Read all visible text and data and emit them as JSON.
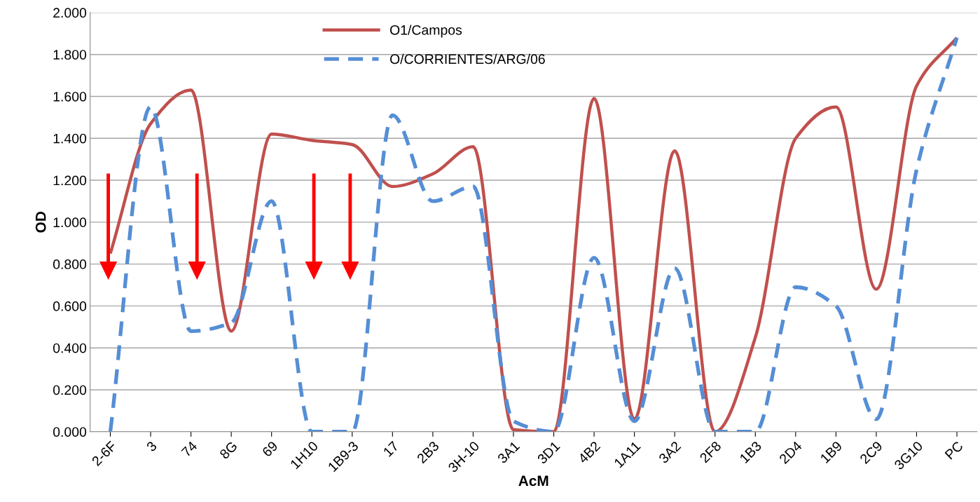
{
  "chart_data": {
    "type": "line",
    "xlabel": "AcM",
    "ylabel": "OD",
    "categories": [
      "2-6F",
      "3",
      "74",
      "8G",
      "69",
      "1H10",
      "1B9-3",
      "17",
      "2B3",
      "3H-10",
      "3A1",
      "3D1",
      "4B2",
      "1A11",
      "3A2",
      "2F8",
      "1B3",
      "2D4",
      "1B9",
      "2C9",
      "3G10",
      "PC"
    ],
    "series": [
      {
        "name": "O1/Campos",
        "color": "#c0504d",
        "line_style": "solid",
        "values": [
          0.85,
          1.47,
          1.63,
          0.48,
          1.42,
          1.39,
          1.37,
          1.17,
          1.23,
          1.36,
          0.01,
          0.0,
          1.59,
          0.06,
          1.34,
          0.0,
          0.45,
          1.4,
          1.55,
          0.68,
          1.65,
          1.88
        ]
      },
      {
        "name": "O/CORRIENTES/ARG/06",
        "color": "#558ed5",
        "line_style": "dashed",
        "values": [
          0.0,
          1.55,
          0.48,
          0.52,
          1.1,
          0.0,
          0.0,
          1.51,
          1.1,
          1.17,
          0.05,
          0.0,
          0.83,
          0.05,
          0.78,
          0.0,
          0.0,
          0.69,
          0.6,
          0.06,
          1.25,
          1.88
        ]
      }
    ],
    "ylim": [
      0,
      2
    ],
    "yticks": [
      {
        "value": 0,
        "label": "0.000"
      },
      {
        "value": 0.2,
        "label": "0.200"
      },
      {
        "value": 0.4,
        "label": "0.400"
      },
      {
        "value": 0.6,
        "label": "0.600"
      },
      {
        "value": 0.8,
        "label": "0.800"
      },
      {
        "value": 1.0,
        "label": "1.000"
      },
      {
        "value": 1.2,
        "label": "1.200"
      },
      {
        "value": 1.4,
        "label": "1.400"
      },
      {
        "value": 1.6,
        "label": "1.600"
      },
      {
        "value": 1.8,
        "label": "1.800"
      },
      {
        "value": 2.0,
        "label": "2.000"
      }
    ],
    "grid": "y",
    "legend": "top",
    "marker": "none"
  }
}
